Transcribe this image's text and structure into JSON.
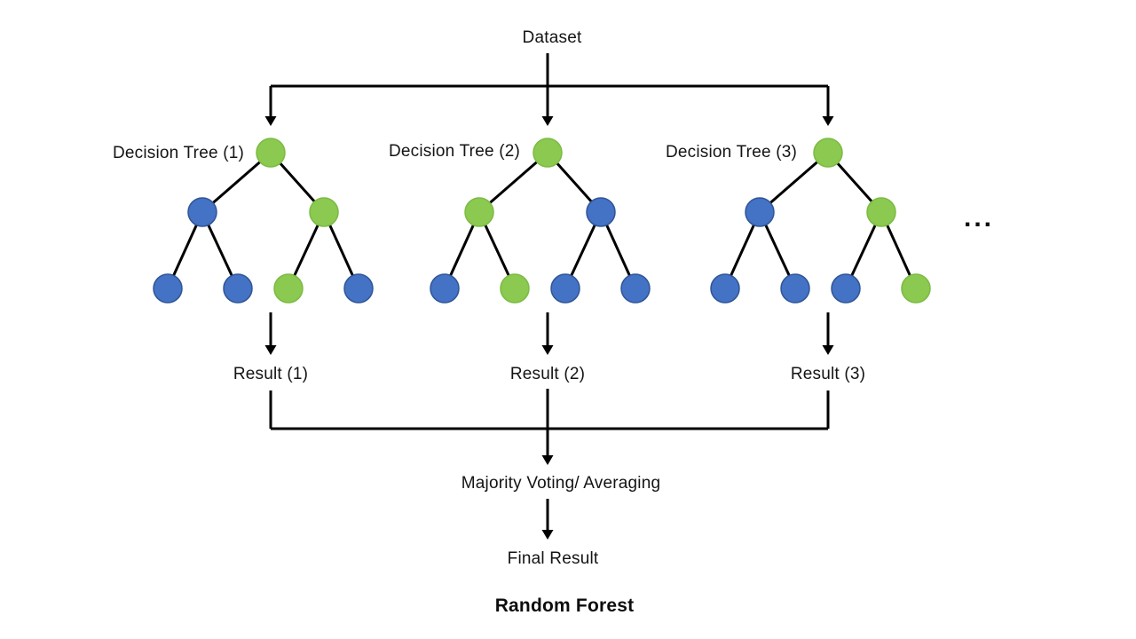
{
  "diagram": {
    "dataset_label": "Dataset",
    "ellipsis": "...",
    "majority_label": "Majority Voting/ Averaging",
    "final_result_label": "Final Result",
    "caption": "Random Forest",
    "colors": {
      "green": "#8CC951",
      "green_stroke": "#7ABB42",
      "blue": "#4472C4",
      "blue_stroke": "#2F5597",
      "line": "#000000"
    },
    "trees": [
      {
        "label": "Decision Tree (1)",
        "result_label": "Result (1)",
        "node_colors": [
          "green",
          "blue",
          "green",
          "blue",
          "blue",
          "green",
          "blue"
        ]
      },
      {
        "label": "Decision Tree (2)",
        "result_label": "Result (2)",
        "node_colors": [
          "green",
          "green",
          "blue",
          "blue",
          "green",
          "blue",
          "blue"
        ]
      },
      {
        "label": "Decision Tree (3)",
        "result_label": "Result (3)",
        "node_colors": [
          "green",
          "blue",
          "green",
          "blue",
          "blue",
          "blue",
          "green"
        ]
      }
    ]
  }
}
